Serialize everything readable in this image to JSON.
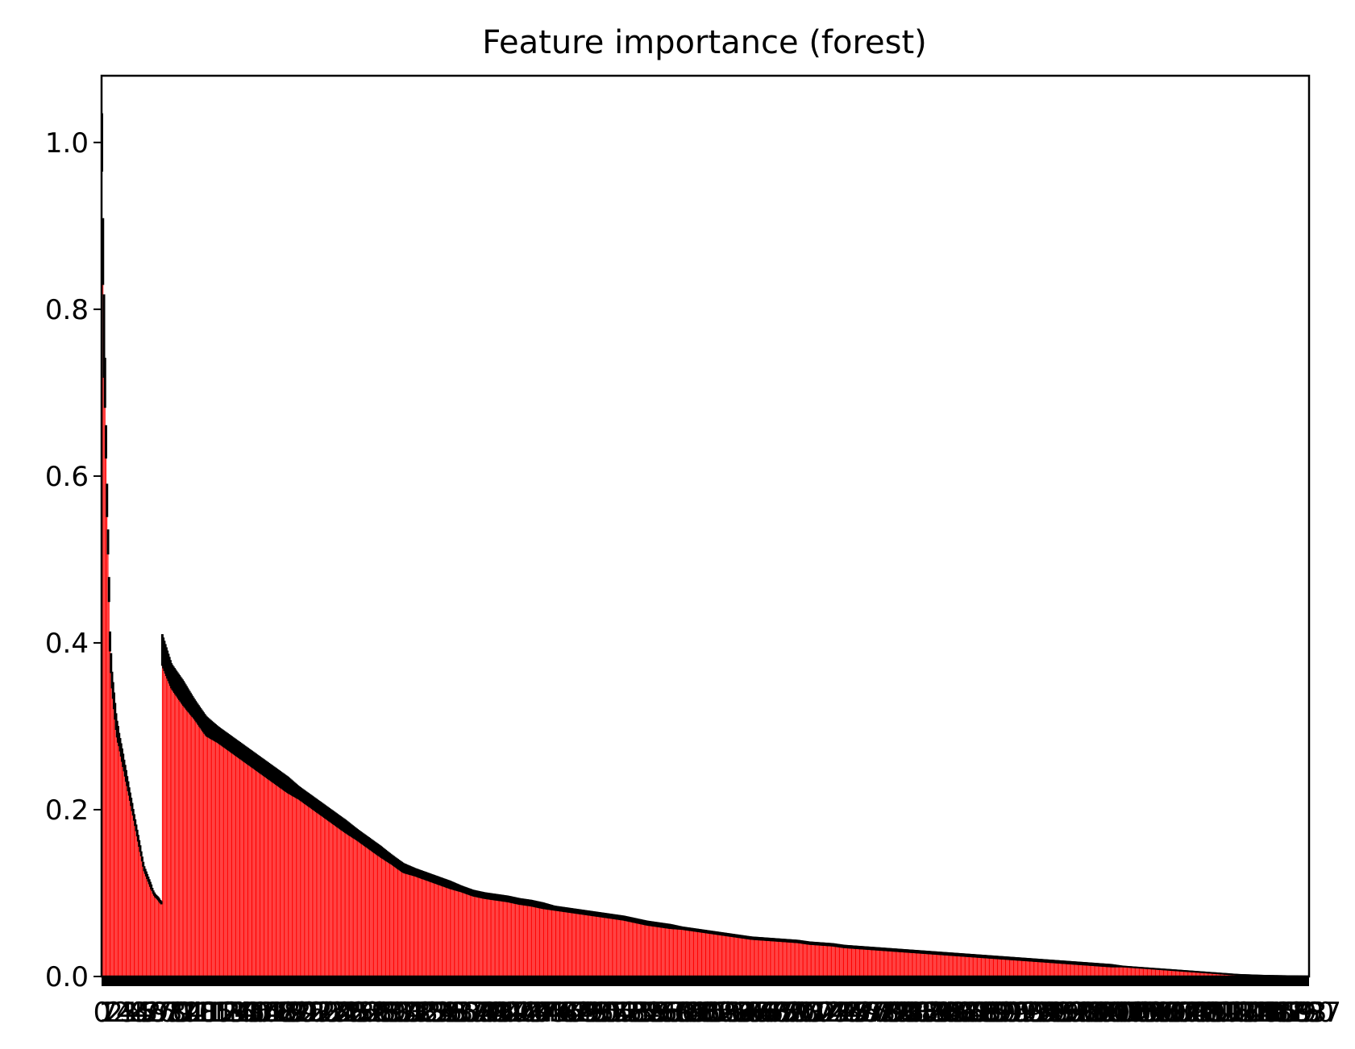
{
  "chart_data": {
    "type": "bar",
    "title": "Feature importance (forest)",
    "xlabel": "",
    "ylabel": "",
    "ylim": [
      0.0,
      1.08
    ],
    "yticks": [
      "0.0",
      "0.2",
      "0.4",
      "0.6",
      "0.8",
      "1.0"
    ],
    "grid": false,
    "legend": "none",
    "colors": {
      "bar": "#ff0000",
      "error_bar": "#000000",
      "axes": "#000000",
      "background": "#ffffff"
    },
    "n_features": 1200,
    "description_of_series": "importances sorted descending with std error bars",
    "values": [
      1.0,
      0.79,
      0.7,
      0.58,
      0.5,
      0.4,
      0.36,
      0.34,
      0.32,
      0.3,
      0.29,
      0.28,
      0.27,
      0.26,
      0.25,
      0.24,
      0.23,
      0.22,
      0.21,
      0.2,
      0.19,
      0.18,
      0.17,
      0.16,
      0.15,
      0.14,
      0.13,
      0.125,
      0.12,
      0.115,
      0.11,
      0.105,
      0.1,
      0.097,
      0.095,
      0.093,
      0.09,
      0.088,
      0.085,
      0.082,
      0.08,
      0.078,
      0.076,
      0.074,
      0.072,
      0.07,
      0.067,
      0.064,
      0.062,
      0.06,
      0.058,
      0.056,
      0.054,
      0.052,
      0.05,
      0.048,
      0.046,
      0.045,
      0.044,
      0.043,
      0.042,
      0.04,
      0.039,
      0.038,
      0.036,
      0.035,
      0.034,
      0.033,
      0.032,
      0.031,
      0.03,
      0.029,
      0.028,
      0.027,
      0.026,
      0.025,
      0.024,
      0.023,
      0.022,
      0.021,
      0.02,
      0.019,
      0.018,
      0.017,
      0.016,
      0.015,
      0.014,
      0.013,
      0.012,
      0.011,
      0.01,
      0.009,
      0.008,
      0.007,
      0.006,
      0.005,
      0.004,
      0.003,
      0.002,
      0.0015,
      0.001,
      0.0007,
      0.0005,
      0.0003,
      0.0001
    ],
    "errors": [
      0.035,
      0.04,
      0.05,
      0.03,
      0.02,
      0.02,
      0.015,
      0.015,
      0.012,
      0.012,
      0.01,
      0.01,
      0.01,
      0.01,
      0.01,
      0.01,
      0.01,
      0.008,
      0.008,
      0.008,
      0.008,
      0.008,
      0.007,
      0.007,
      0.007,
      0.006,
      0.006,
      0.005,
      0.005,
      0.005,
      0.005,
      0.004,
      0.004,
      0.004,
      0.004,
      0.004,
      0.004,
      0.004,
      0.004,
      0.003,
      0.003,
      0.003,
      0.003,
      0.003,
      0.003,
      0.003,
      0.003,
      0.003,
      0.003,
      0.003,
      0.002,
      0.002,
      0.002,
      0.002,
      0.002,
      0.002,
      0.002,
      0.002,
      0.002,
      0.002,
      0.002,
      0.002,
      0.002,
      0.002,
      0.002,
      0.002,
      0.002,
      0.002,
      0.002,
      0.002,
      0.002,
      0.002,
      0.002,
      0.002,
      0.002,
      0.002,
      0.002,
      0.002,
      0.002,
      0.002,
      0.002,
      0.002,
      0.002,
      0.002,
      0.002,
      0.002,
      0.002,
      0.002,
      0.001,
      0.001,
      0.001,
      0.001,
      0.001,
      0.001,
      0.001,
      0.001,
      0.001,
      0.001,
      0.001,
      0.001,
      0.001,
      0.001,
      0.001,
      0.001,
      0.001
    ]
  }
}
